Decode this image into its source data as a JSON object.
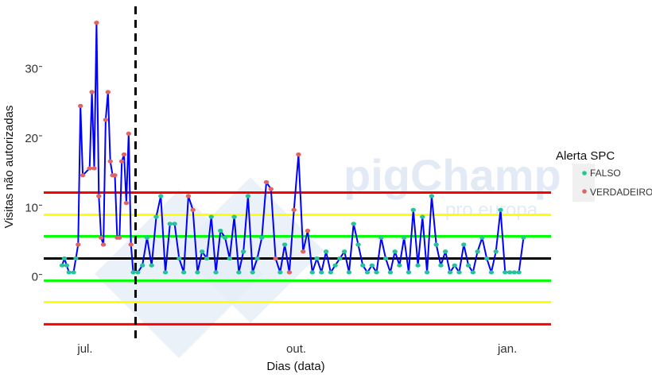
{
  "chart_data": {
    "type": "line",
    "xlabel": "Dias (data)",
    "ylabel": "Visitas não autorizadas",
    "x_ticks": [
      {
        "date": "2018-07-01",
        "label": "jul."
      },
      {
        "date": "2018-10-01",
        "label": "out."
      },
      {
        "date": "2019-01-01",
        "label": "jan."
      }
    ],
    "y_ticks": [
      0,
      10,
      20,
      30
    ],
    "xlim": [
      "2018-06-13",
      "2019-01-20"
    ],
    "ylim": [
      -8.4,
      39.7
    ],
    "grid": false,
    "legend": {
      "title": "Alerta SPC",
      "placement": "right",
      "entries": [
        {
          "label": "FALSO",
          "color": "#26c29a"
        },
        {
          "label": "VERDADEIRO",
          "color": "#e06464"
        }
      ]
    },
    "line_color": "#0000ff",
    "vertical_marker": {
      "date": "2018-07-23",
      "style": "dashed",
      "color": "#000000"
    },
    "control_lines": [
      {
        "value": 12.5,
        "color": "#ff0000"
      },
      {
        "value": 9.3,
        "color": "#ffff00"
      },
      {
        "value": 6.2,
        "color": "#00ff00"
      },
      {
        "value": 3.0,
        "color": "#000000"
      },
      {
        "value": -0.2,
        "color": "#00ff00"
      },
      {
        "value": -3.3,
        "color": "#ffff00"
      },
      {
        "value": -6.5,
        "color": "#ff0000"
      }
    ],
    "points": [
      [
        "2018-06-21",
        2,
        false
      ],
      [
        "2018-06-22",
        3,
        false
      ],
      [
        "2018-06-23",
        2,
        false
      ],
      [
        "2018-06-24",
        1,
        false
      ],
      [
        "2018-06-26",
        1,
        false
      ],
      [
        "2018-06-27",
        3,
        false
      ],
      [
        "2018-06-28",
        5,
        true
      ],
      [
        "2018-06-29",
        25,
        true
      ],
      [
        "2018-06-30",
        15,
        true
      ],
      [
        "2018-07-03",
        16,
        true
      ],
      [
        "2018-07-04",
        27,
        true
      ],
      [
        "2018-07-05",
        16,
        true
      ],
      [
        "2018-07-06",
        37,
        true
      ],
      [
        "2018-07-07",
        12,
        true
      ],
      [
        "2018-07-08",
        6,
        true
      ],
      [
        "2018-07-09",
        5,
        true
      ],
      [
        "2018-07-10",
        23,
        true
      ],
      [
        "2018-07-11",
        27,
        true
      ],
      [
        "2018-07-12",
        17,
        true
      ],
      [
        "2018-07-13",
        15,
        true
      ],
      [
        "2018-07-14",
        15,
        true
      ],
      [
        "2018-07-15",
        6,
        true
      ],
      [
        "2018-07-16",
        6,
        true
      ],
      [
        "2018-07-17",
        17,
        true
      ],
      [
        "2018-07-18",
        18,
        true
      ],
      [
        "2018-07-19",
        11,
        true
      ],
      [
        "2018-07-20",
        21,
        true
      ],
      [
        "2018-07-21",
        5,
        true
      ],
      [
        "2018-07-22",
        1,
        false
      ],
      [
        "2018-07-24",
        1,
        false
      ],
      [
        "2018-07-26",
        2,
        false
      ],
      [
        "2018-07-28",
        6,
        false
      ],
      [
        "2018-07-30",
        2,
        false
      ],
      [
        "2018-08-01",
        9,
        false
      ],
      [
        "2018-08-03",
        12,
        false
      ],
      [
        "2018-08-05",
        1,
        false
      ],
      [
        "2018-08-07",
        8,
        false
      ],
      [
        "2018-08-09",
        8,
        false
      ],
      [
        "2018-08-11",
        3,
        false
      ],
      [
        "2018-08-13",
        1,
        false
      ],
      [
        "2018-08-15",
        12,
        true
      ],
      [
        "2018-08-17",
        10,
        true
      ],
      [
        "2018-08-19",
        1,
        false
      ],
      [
        "2018-08-21",
        4,
        false
      ],
      [
        "2018-08-23",
        3,
        false
      ],
      [
        "2018-08-25",
        9,
        false
      ],
      [
        "2018-08-27",
        1,
        false
      ],
      [
        "2018-08-29",
        7,
        false
      ],
      [
        "2018-08-31",
        6,
        false
      ],
      [
        "2018-09-02",
        3,
        false
      ],
      [
        "2018-09-04",
        9,
        false
      ],
      [
        "2018-09-06",
        1,
        false
      ],
      [
        "2018-09-08",
        4,
        false
      ],
      [
        "2018-09-10",
        12,
        false
      ],
      [
        "2018-09-12",
        1,
        false
      ],
      [
        "2018-09-14",
        3,
        false
      ],
      [
        "2018-09-16",
        6,
        false
      ],
      [
        "2018-09-18",
        14,
        true
      ],
      [
        "2018-09-20",
        13,
        true
      ],
      [
        "2018-09-22",
        3,
        true
      ],
      [
        "2018-09-24",
        1,
        false
      ],
      [
        "2018-09-26",
        5,
        false
      ],
      [
        "2018-09-28",
        1,
        true
      ],
      [
        "2018-09-30",
        10,
        true
      ],
      [
        "2018-10-02",
        18,
        true
      ],
      [
        "2018-10-04",
        4,
        true
      ],
      [
        "2018-10-06",
        7,
        true
      ],
      [
        "2018-10-08",
        1,
        false
      ],
      [
        "2018-10-10",
        3,
        false
      ],
      [
        "2018-10-12",
        1,
        false
      ],
      [
        "2018-10-14",
        4,
        false
      ],
      [
        "2018-10-16",
        1,
        false
      ],
      [
        "2018-10-18",
        2,
        false
      ],
      [
        "2018-10-20",
        3,
        false
      ],
      [
        "2018-10-22",
        4,
        false
      ],
      [
        "2018-10-24",
        1,
        false
      ],
      [
        "2018-10-26",
        8,
        false
      ],
      [
        "2018-10-28",
        5,
        false
      ],
      [
        "2018-10-30",
        2,
        false
      ],
      [
        "2018-11-01",
        1,
        false
      ],
      [
        "2018-11-03",
        2,
        false
      ],
      [
        "2018-11-05",
        1,
        false
      ],
      [
        "2018-11-07",
        6,
        false
      ],
      [
        "2018-11-09",
        3,
        false
      ],
      [
        "2018-11-11",
        1,
        false
      ],
      [
        "2018-11-13",
        4,
        false
      ],
      [
        "2018-11-15",
        2,
        false
      ],
      [
        "2018-11-17",
        6,
        false
      ],
      [
        "2018-11-19",
        1,
        false
      ],
      [
        "2018-11-21",
        10,
        false
      ],
      [
        "2018-11-23",
        2,
        false
      ],
      [
        "2018-11-25",
        9,
        false
      ],
      [
        "2018-11-27",
        1,
        false
      ],
      [
        "2018-11-29",
        12,
        false
      ],
      [
        "2018-12-01",
        5,
        false
      ],
      [
        "2018-12-03",
        2,
        false
      ],
      [
        "2018-12-05",
        4,
        false
      ],
      [
        "2018-12-07",
        1,
        false
      ],
      [
        "2018-12-09",
        2,
        false
      ],
      [
        "2018-12-11",
        1,
        false
      ],
      [
        "2018-12-13",
        5,
        false
      ],
      [
        "2018-12-15",
        2,
        false
      ],
      [
        "2018-12-17",
        1,
        false
      ],
      [
        "2018-12-19",
        4,
        false
      ],
      [
        "2018-12-21",
        6,
        false
      ],
      [
        "2018-12-23",
        3,
        false
      ],
      [
        "2018-12-25",
        1,
        false
      ],
      [
        "2018-12-27",
        4,
        false
      ],
      [
        "2018-12-29",
        10,
        false
      ],
      [
        "2018-12-31",
        1,
        false
      ],
      [
        "2019-01-02",
        1,
        false
      ],
      [
        "2019-01-04",
        1,
        false
      ],
      [
        "2019-01-06",
        1,
        false
      ],
      [
        "2019-01-08",
        6,
        false
      ]
    ]
  },
  "watermark": {
    "brand": "pigChamp",
    "sub": "pro europa"
  }
}
